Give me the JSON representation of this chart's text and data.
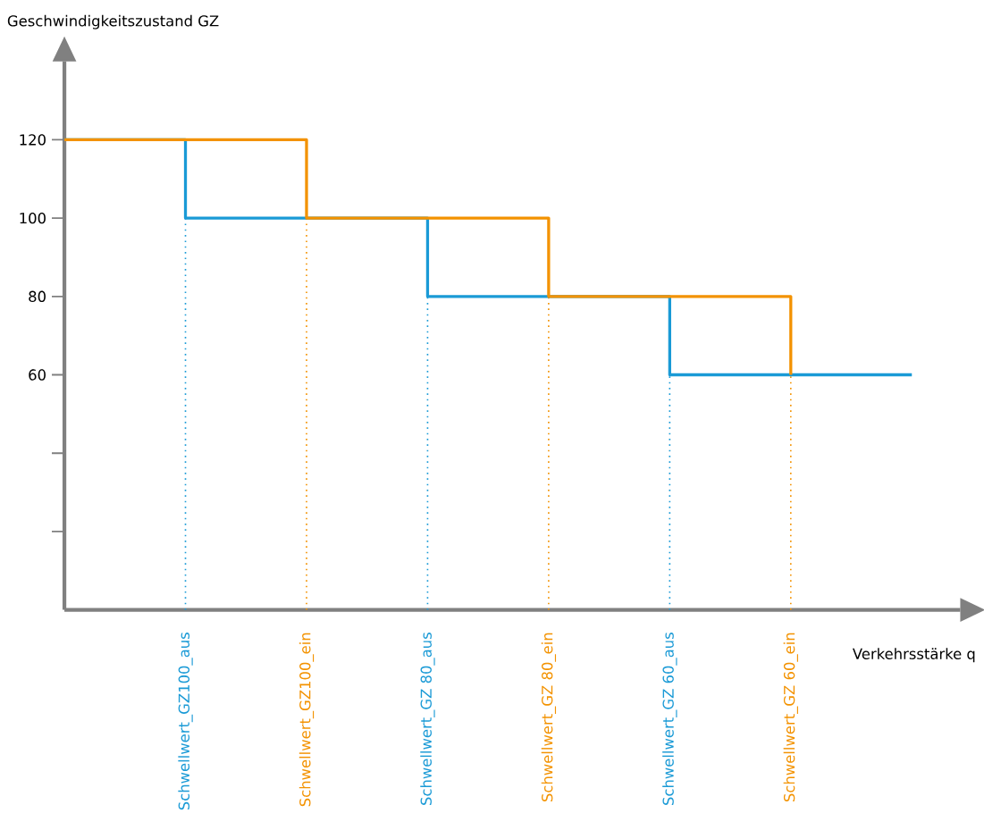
{
  "chart_data": {
    "type": "step",
    "ylabel": "Geschwindigkeitszustand GZ",
    "xlabel": "Verkehrsstärke q",
    "categories": [
      null,
      "Schwellwert_GZ100_aus",
      "Schwellwert_GZ100_ein",
      "Schwellwert_GZ 80_aus",
      "Schwellwert_GZ 80_ein",
      "Schwellwert_GZ 60_aus",
      "Schwellwert_GZ 60_ein",
      null
    ],
    "series": [
      {
        "color": "#1a9ad6",
        "values": [
          120,
          100,
          100,
          80,
          80,
          60,
          60,
          60
        ]
      },
      {
        "color": "#f39200",
        "values": [
          120,
          120,
          100,
          100,
          80,
          80,
          60,
          null
        ]
      }
    ],
    "ylim": [
      0,
      140
    ],
    "yticks": [
      {
        "value": 20,
        "label": null
      },
      {
        "value": 40,
        "label": null
      },
      60,
      80,
      100,
      120
    ],
    "ref_lines": [
      {
        "axis": "x",
        "value": "Schwellwert_GZ100_aus",
        "color": "#1a9ad6",
        "line_style": "dotted"
      },
      {
        "axis": "x",
        "value": "Schwellwert_GZ100_ein",
        "color": "#f39200",
        "line_style": "dotted"
      },
      {
        "axis": "x",
        "value": "Schwellwert_GZ 80_aus",
        "color": "#1a9ad6",
        "line_style": "dotted"
      },
      {
        "axis": "x",
        "value": "Schwellwert_GZ 80_ein",
        "color": "#f39200",
        "line_style": "dotted"
      },
      {
        "axis": "x",
        "value": "Schwellwert_GZ 60_aus",
        "color": "#1a9ad6",
        "line_style": "dotted"
      },
      {
        "axis": "x",
        "value": "Schwellwert_GZ 60_ein",
        "color": "#f39200",
        "line_style": "dotted"
      }
    ]
  }
}
